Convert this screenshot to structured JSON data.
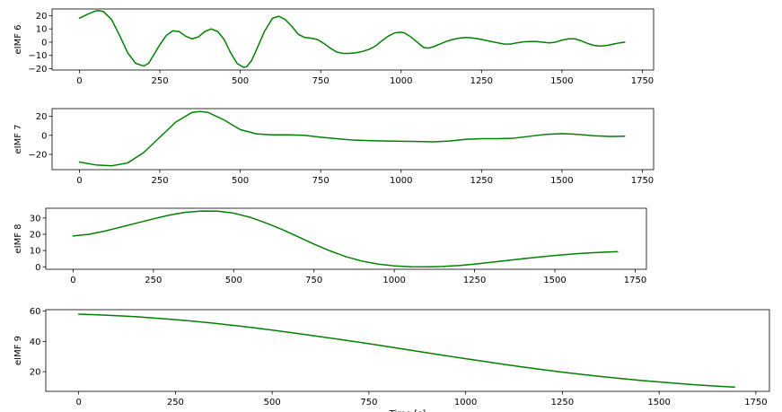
{
  "colors": {
    "line": "#008000"
  },
  "chart_data": [
    {
      "type": "line",
      "ylabel": "eIMF 6",
      "xlim": [
        -85,
        1785
      ],
      "ylim": [
        -21,
        25
      ],
      "xticks": [
        0,
        250,
        500,
        750,
        1000,
        1250,
        1500,
        1750
      ],
      "yticks": [
        -20,
        -10,
        0,
        10,
        20
      ],
      "grid": false,
      "series": [
        {
          "x": [
            0,
            25,
            50,
            60,
            75,
            100,
            125,
            150,
            175,
            200,
            215,
            230,
            250,
            270,
            290,
            310,
            330,
            350,
            370,
            390,
            410,
            430,
            450,
            470,
            490,
            510,
            520,
            535,
            550,
            575,
            600,
            620,
            640,
            660,
            680,
            700,
            720,
            740,
            760,
            780,
            800,
            820,
            840,
            860,
            880,
            900,
            920,
            940,
            960,
            980,
            1000,
            1010,
            1030,
            1050,
            1070,
            1085,
            1100,
            1120,
            1140,
            1160,
            1180,
            1200,
            1220,
            1240,
            1260,
            1280,
            1300,
            1320,
            1340,
            1360,
            1380,
            1400,
            1420,
            1440,
            1460,
            1480,
            1500,
            1520,
            1540,
            1560,
            1580,
            1600,
            1620,
            1640,
            1660,
            1680,
            1695
          ],
          "y": [
            18,
            21,
            23.5,
            23.8,
            23,
            17,
            5,
            -8,
            -16,
            -18,
            -16,
            -10,
            -2,
            5,
            8.5,
            8,
            4.5,
            2.5,
            4,
            8,
            10,
            8,
            2,
            -8,
            -16,
            -19,
            -18.5,
            -14,
            -6,
            8,
            18,
            19.5,
            17,
            12,
            6,
            3.5,
            3,
            2,
            -1,
            -4.5,
            -7.5,
            -8.5,
            -8.5,
            -8,
            -7,
            -5.5,
            -3,
            1,
            4.5,
            7,
            7.5,
            7,
            4,
            0,
            -4,
            -4.5,
            -3.5,
            -1.5,
            0.5,
            2,
            3,
            3.5,
            3.2,
            2.5,
            1.5,
            0.5,
            -0.5,
            -1.5,
            -1.5,
            -0.5,
            0.2,
            0.5,
            0.5,
            0,
            -0.5,
            0,
            1.5,
            2.5,
            2.5,
            1,
            -1,
            -2.5,
            -3,
            -2.5,
            -1.5,
            -0.5,
            0
          ]
        }
      ]
    },
    {
      "type": "line",
      "ylabel": "eIMF 7",
      "xlim": [
        -85,
        1785
      ],
      "ylim": [
        -36,
        28
      ],
      "xticks": [
        0,
        250,
        500,
        750,
        1000,
        1250,
        1500,
        1750
      ],
      "yticks": [
        -20,
        0,
        20
      ],
      "grid": false,
      "series": [
        {
          "x": [
            0,
            50,
            100,
            150,
            200,
            250,
            300,
            350,
            375,
            400,
            450,
            500,
            550,
            600,
            650,
            700,
            750,
            800,
            850,
            900,
            950,
            1000,
            1050,
            1100,
            1150,
            1200,
            1250,
            1300,
            1350,
            1400,
            1450,
            1500,
            1550,
            1600,
            1650,
            1695
          ],
          "y": [
            -28,
            -31,
            -32,
            -29,
            -18,
            -2,
            14,
            24,
            25,
            24,
            16,
            6,
            1.5,
            0.5,
            0.5,
            0,
            -2,
            -3.5,
            -5,
            -5.5,
            -6,
            -6.2,
            -6.5,
            -6.8,
            -6,
            -4.2,
            -3.5,
            -3.5,
            -3,
            -1,
            1,
            1.8,
            1,
            -0.5,
            -1.2,
            -1
          ]
        }
      ]
    },
    {
      "type": "line",
      "ylabel": "eIMF 8",
      "xlim": [
        -85,
        1785
      ],
      "ylim": [
        -1.5,
        36
      ],
      "xticks": [
        0,
        250,
        500,
        750,
        1000,
        1250,
        1500,
        1750
      ],
      "yticks": [
        0,
        10,
        20,
        30
      ],
      "grid": false,
      "series": [
        {
          "x": [
            0,
            50,
            100,
            150,
            200,
            250,
            300,
            350,
            400,
            450,
            500,
            550,
            600,
            650,
            700,
            750,
            800,
            850,
            900,
            950,
            1000,
            1050,
            1100,
            1150,
            1200,
            1250,
            1300,
            1350,
            1400,
            1450,
            1500,
            1550,
            1600,
            1650,
            1695
          ],
          "y": [
            19,
            20,
            22,
            24.5,
            27,
            29.5,
            31.8,
            33.5,
            34.3,
            34.2,
            33,
            30.5,
            27,
            23,
            18.5,
            14,
            9.8,
            6.2,
            3.5,
            1.7,
            0.6,
            0.1,
            0,
            0.2,
            0.8,
            1.7,
            2.8,
            3.9,
            5,
            6,
            7,
            7.8,
            8.5,
            9,
            9.3
          ]
        }
      ]
    },
    {
      "type": "line",
      "ylabel": "eIMF 9",
      "xlabel": "Time [s]",
      "xlim": [
        -85,
        1785
      ],
      "ylim": [
        7,
        61
      ],
      "xticks": [
        0,
        250,
        500,
        750,
        1000,
        1250,
        1500,
        1750
      ],
      "yticks": [
        20,
        40,
        60
      ],
      "grid": false,
      "series": [
        {
          "x": [
            0,
            50,
            100,
            150,
            200,
            250,
            300,
            350,
            400,
            450,
            500,
            550,
            600,
            650,
            700,
            750,
            800,
            850,
            900,
            950,
            1000,
            1050,
            1100,
            1150,
            1200,
            1250,
            1300,
            1350,
            1400,
            1450,
            1500,
            1550,
            1600,
            1650,
            1695
          ],
          "y": [
            58,
            57.6,
            57,
            56.3,
            55.4,
            54.4,
            53.3,
            52,
            50.6,
            49.1,
            47.5,
            45.8,
            44,
            42.2,
            40.4,
            38.5,
            36.5,
            34.5,
            32.5,
            30.5,
            28.6,
            26.7,
            24.8,
            23,
            21.3,
            19.7,
            18.2,
            16.8,
            15.5,
            14.3,
            13.2,
            12.2,
            11.2,
            10.4,
            9.8
          ]
        }
      ]
    }
  ]
}
